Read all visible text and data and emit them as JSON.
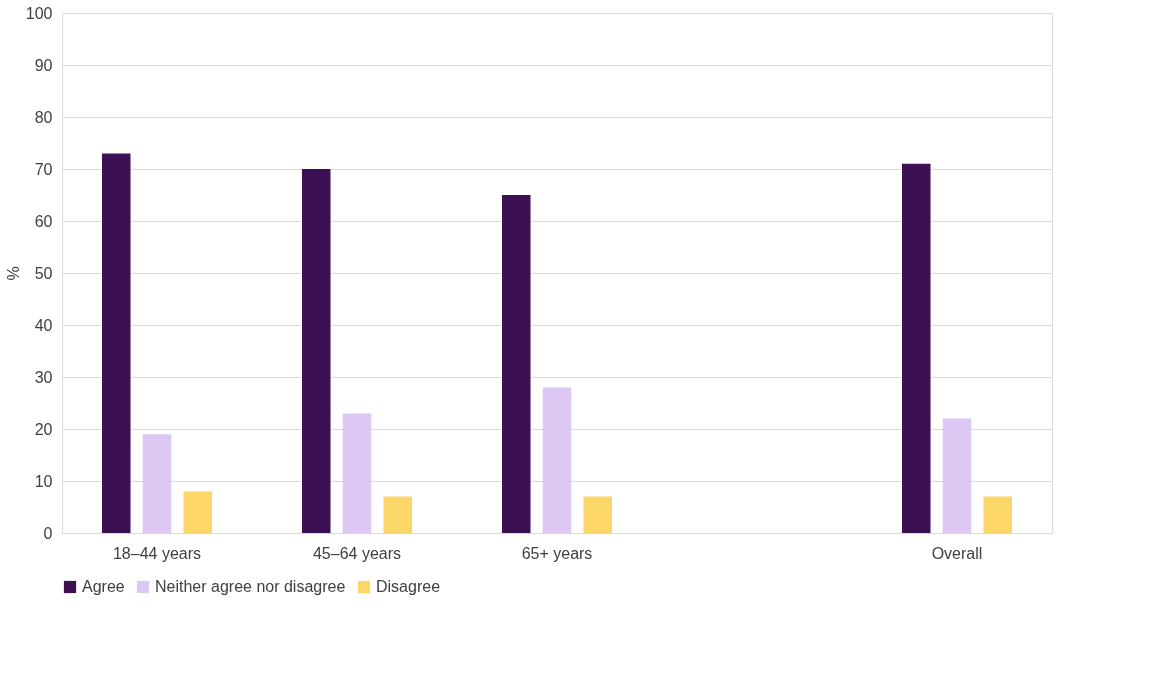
{
  "chart_data": {
    "type": "bar",
    "ylabel": "%",
    "categories": [
      "18–44 years",
      "45–64 years",
      "65+ years",
      null,
      "Overall"
    ],
    "series": [
      {
        "name": "Agree",
        "color": "#3c1053",
        "values": [
          73,
          70,
          65,
          null,
          71
        ]
      },
      {
        "name": "Neither agree nor disagree",
        "color": "#dcc8f2",
        "values": [
          19,
          23,
          28,
          null,
          22
        ]
      },
      {
        "name": "Disagree",
        "color": "#fcd667",
        "values": [
          8,
          7,
          7,
          null,
          7
        ]
      }
    ],
    "ylim": [
      0,
      100
    ],
    "yticks": [
      0,
      10,
      20,
      30,
      40,
      50,
      60,
      70,
      80,
      90,
      100
    ],
    "grid": "y",
    "legend": "bottom"
  }
}
